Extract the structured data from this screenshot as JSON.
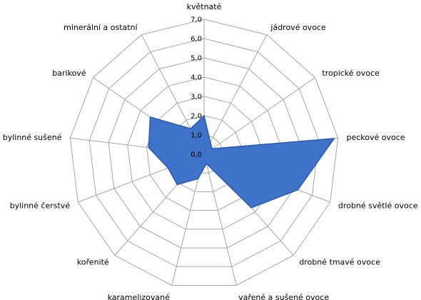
{
  "chart_data": {
    "type": "radar",
    "title": "",
    "categories": [
      "květnaté",
      "jádrové ovoce",
      "tropické ovoce",
      "peckové ovoce",
      "drobné světlé ovoce",
      "drobné tmavé ovoce",
      "vařené a sušené ovoce",
      "karamelizované",
      "kořenité",
      "bylinné čerstvé",
      "bylinné sušené",
      "barikové",
      "minerální a ostatní"
    ],
    "series": [
      {
        "values": [
          2.0,
          0.7,
          0.5,
          6.8,
          5.2,
          3.7,
          0.5,
          1.3,
          2.1,
          2.0,
          2.9,
          3.4,
          1.5
        ]
      }
    ],
    "rlim": [
      0,
      7
    ],
    "ticks": [
      "0,0",
      "1,0",
      "2,0",
      "3,0",
      "4,0",
      "5,0",
      "6,0",
      "7,0"
    ],
    "grid": true,
    "legend": "none",
    "colors": {
      "fill": "#3f72c9",
      "stroke": "#2d5aa8",
      "grid": "#a6a6a6"
    }
  }
}
